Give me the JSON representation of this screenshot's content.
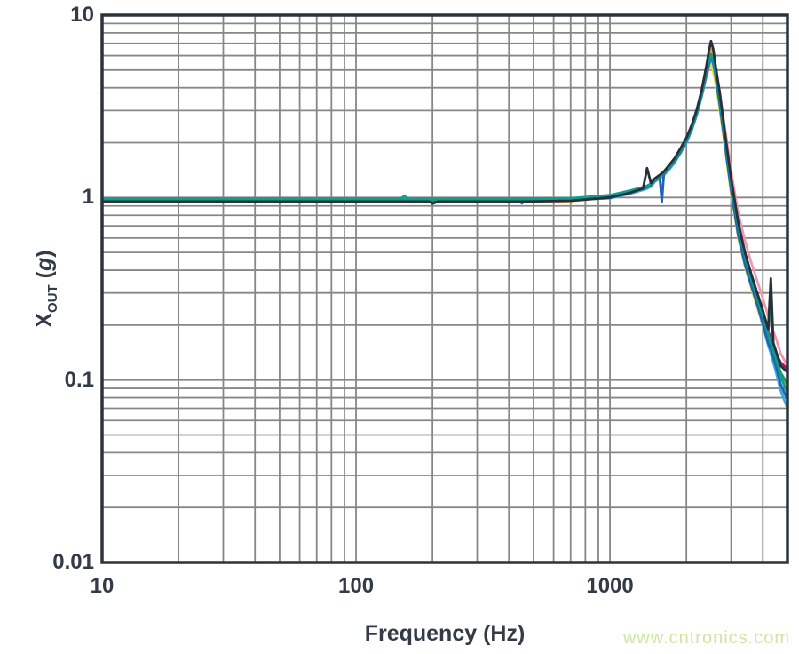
{
  "watermark": {
    "text": "www.cntronics.com",
    "color": "#cfe5a2"
  },
  "colors": {
    "text": "#343b48",
    "axis_border": "#2b333d",
    "grid": "#878787",
    "background": "#ffffff"
  },
  "chart_data": {
    "type": "line",
    "title": "",
    "x_scale": "log",
    "y_scale": "log",
    "xlabel": "Frequency (Hz)",
    "ylabel": {
      "base": "X",
      "subscript": "OUT",
      "unit_open": " (",
      "unit": "g",
      "unit_close": ")"
    },
    "xlim": [
      10,
      5000
    ],
    "ylim": [
      0.01,
      10
    ],
    "grid": {
      "shown": true,
      "minor": true
    },
    "legend": "none",
    "x_ticks": [
      {
        "value": 10,
        "label": "10"
      },
      {
        "value": 100,
        "label": "100"
      },
      {
        "value": 1000,
        "label": "1000"
      }
    ],
    "y_ticks": [
      {
        "value": 10,
        "label": "10"
      },
      {
        "value": 1,
        "label": "1"
      },
      {
        "value": 0.1,
        "label": "0.1"
      },
      {
        "value": 0.01,
        "label": "0.01"
      }
    ],
    "description": "Multiple overlaid accelerometer frequency-response traces: flat near 1 g to ~1 kHz, resonance peak ~5.5-7 g near 2.5 kHz, steep roll-off to ~0.07-0.12 g at 5 kHz with a small secondary spike near 4.3 kHz",
    "frequencies_hz": [
      10,
      20,
      50,
      100,
      150,
      155,
      160,
      195,
      200,
      210,
      300,
      440,
      450,
      460,
      700,
      1000,
      1200,
      1350,
      1400,
      1450,
      1500,
      1570,
      1600,
      1630,
      1700,
      1800,
      1900,
      2000,
      2100,
      2200,
      2300,
      2400,
      2450,
      2500,
      2550,
      2600,
      2700,
      2800,
      2900,
      3000,
      3200,
      3400,
      3600,
      3800,
      4000,
      4200,
      4300,
      4400,
      4500,
      4700,
      5000
    ],
    "series": [
      {
        "name": "trace-pink",
        "color": "#ef9aab",
        "values": [
          0.97,
          0.97,
          0.97,
          0.97,
          0.97,
          0.97,
          0.97,
          0.97,
          0.97,
          0.97,
          0.97,
          0.97,
          0.97,
          0.97,
          0.98,
          1.03,
          1.09,
          1.14,
          1.16,
          1.18,
          1.26,
          1.31,
          1.34,
          1.37,
          1.47,
          1.62,
          1.83,
          2.08,
          2.42,
          2.9,
          3.6,
          4.6,
          5.1,
          5.5,
          5.6,
          5.2,
          3.9,
          2.7,
          1.95,
          1.4,
          0.82,
          0.58,
          0.44,
          0.35,
          0.28,
          0.225,
          0.2,
          0.185,
          0.17,
          0.14,
          0.12
        ]
      },
      {
        "name": "trace-yellow",
        "color": "#e8df45",
        "values": [
          0.96,
          0.96,
          0.96,
          0.96,
          0.96,
          0.96,
          0.96,
          0.96,
          0.96,
          0.96,
          0.96,
          0.96,
          0.96,
          0.96,
          0.965,
          1.0,
          1.06,
          1.11,
          1.13,
          1.15,
          1.23,
          1.28,
          1.31,
          1.34,
          1.43,
          1.58,
          1.78,
          2.03,
          2.38,
          2.9,
          3.7,
          4.9,
          5.5,
          5.4,
          4.9,
          4.3,
          3.1,
          2.15,
          1.5,
          1.05,
          0.6,
          0.42,
          0.32,
          0.25,
          0.2,
          0.16,
          0.145,
          0.13,
          0.12,
          0.105,
          0.1
        ]
      },
      {
        "name": "trace-crimson",
        "color": "#b5135f",
        "values": [
          0.965,
          0.965,
          0.965,
          0.965,
          0.965,
          0.965,
          0.965,
          0.965,
          0.965,
          0.965,
          0.965,
          0.965,
          0.965,
          0.965,
          0.975,
          1.01,
          1.07,
          1.12,
          1.14,
          1.17,
          1.24,
          1.3,
          1.33,
          1.36,
          1.44,
          1.6,
          1.81,
          2.06,
          2.41,
          2.92,
          3.7,
          4.7,
          5.3,
          5.9,
          5.7,
          5.1,
          3.8,
          2.5,
          1.75,
          1.22,
          0.7,
          0.49,
          0.37,
          0.29,
          0.23,
          0.185,
          0.168,
          0.152,
          0.14,
          0.125,
          0.115
        ]
      },
      {
        "name": "trace-orange",
        "color": "#f2a73b",
        "values": [
          0.945,
          0.945,
          0.945,
          0.945,
          0.945,
          0.945,
          0.945,
          0.945,
          0.945,
          0.945,
          0.945,
          0.945,
          0.945,
          0.945,
          0.955,
          1.0,
          1.06,
          1.12,
          1.14,
          1.17,
          1.25,
          1.31,
          1.34,
          1.37,
          1.46,
          1.62,
          1.83,
          2.08,
          2.44,
          2.96,
          3.8,
          5.1,
          5.9,
          6.5,
          6.0,
          5.1,
          3.6,
          2.45,
          1.7,
          1.2,
          0.68,
          0.47,
          0.36,
          0.28,
          0.22,
          0.175,
          0.158,
          0.143,
          0.13,
          0.105,
          0.09
        ]
      },
      {
        "name": "trace-cyan",
        "color": "#35aadf",
        "values": [
          0.965,
          0.965,
          0.965,
          0.965,
          0.965,
          0.965,
          0.965,
          0.965,
          0.965,
          0.965,
          0.965,
          0.965,
          0.965,
          0.965,
          0.97,
          0.99,
          1.05,
          1.1,
          1.12,
          1.15,
          1.22,
          1.27,
          1.3,
          1.33,
          1.41,
          1.56,
          1.76,
          2.0,
          2.34,
          2.85,
          3.6,
          4.75,
          5.3,
          5.7,
          5.4,
          4.8,
          3.4,
          2.3,
          1.6,
          1.12,
          0.64,
          0.44,
          0.33,
          0.26,
          0.2,
          0.155,
          0.14,
          0.125,
          0.112,
          0.088,
          0.07
        ]
      },
      {
        "name": "trace-royal-blue",
        "color": "#2263af",
        "values": [
          0.955,
          0.955,
          0.955,
          0.955,
          0.955,
          0.955,
          0.955,
          0.955,
          0.955,
          0.955,
          0.955,
          0.955,
          0.93,
          0.955,
          0.965,
          1.0,
          1.07,
          1.12,
          1.14,
          1.17,
          1.24,
          1.3,
          0.95,
          1.35,
          1.44,
          1.59,
          1.79,
          2.04,
          2.39,
          2.9,
          3.65,
          4.8,
          5.4,
          6.0,
          5.5,
          4.7,
          3.3,
          2.25,
          1.55,
          1.1,
          0.62,
          0.43,
          0.33,
          0.26,
          0.205,
          0.16,
          0.147,
          0.133,
          0.12,
          0.095,
          0.078
        ]
      },
      {
        "name": "trace-green",
        "color": "#159e5c",
        "values": [
          0.975,
          0.975,
          0.975,
          0.975,
          0.975,
          0.975,
          0.975,
          0.975,
          0.975,
          0.975,
          0.975,
          0.975,
          0.975,
          0.975,
          0.985,
          1.02,
          1.08,
          1.13,
          1.15,
          1.18,
          1.25,
          1.31,
          1.34,
          1.37,
          1.46,
          1.61,
          1.82,
          2.07,
          2.42,
          2.93,
          3.72,
          4.95,
          5.6,
          6.1,
          5.8,
          5.0,
          3.6,
          2.5,
          1.75,
          1.25,
          0.72,
          0.5,
          0.38,
          0.3,
          0.24,
          0.185,
          0.28,
          0.15,
          0.135,
          0.11,
          0.095
        ]
      },
      {
        "name": "trace-teal",
        "color": "#0d9e90",
        "values": [
          0.985,
          0.985,
          0.985,
          0.985,
          0.985,
          1.02,
          0.985,
          0.985,
          0.985,
          0.985,
          0.985,
          0.985,
          0.985,
          0.985,
          0.99,
          1.03,
          1.09,
          1.14,
          1.16,
          1.19,
          1.26,
          1.32,
          1.35,
          1.38,
          1.47,
          1.63,
          1.84,
          2.1,
          2.45,
          2.97,
          3.75,
          5.0,
          5.6,
          6.05,
          5.7,
          4.95,
          3.55,
          2.45,
          1.72,
          1.22,
          0.7,
          0.48,
          0.36,
          0.285,
          0.225,
          0.178,
          0.16,
          0.145,
          0.132,
          0.105,
          0.085
        ]
      },
      {
        "name": "trace-navy",
        "color": "#25303c",
        "values": [
          0.95,
          0.95,
          0.95,
          0.95,
          0.95,
          0.95,
          0.95,
          0.95,
          0.925,
          0.95,
          0.95,
          0.95,
          0.95,
          0.95,
          0.96,
          1.0,
          1.06,
          1.12,
          1.45,
          1.2,
          1.27,
          1.33,
          1.36,
          1.39,
          1.49,
          1.65,
          1.87,
          2.13,
          2.5,
          3.05,
          3.9,
          5.3,
          6.3,
          7.2,
          6.5,
          5.4,
          3.8,
          2.6,
          1.8,
          1.28,
          0.73,
          0.5,
          0.38,
          0.3,
          0.24,
          0.19,
          0.36,
          0.16,
          0.145,
          0.12,
          0.11
        ]
      }
    ]
  }
}
